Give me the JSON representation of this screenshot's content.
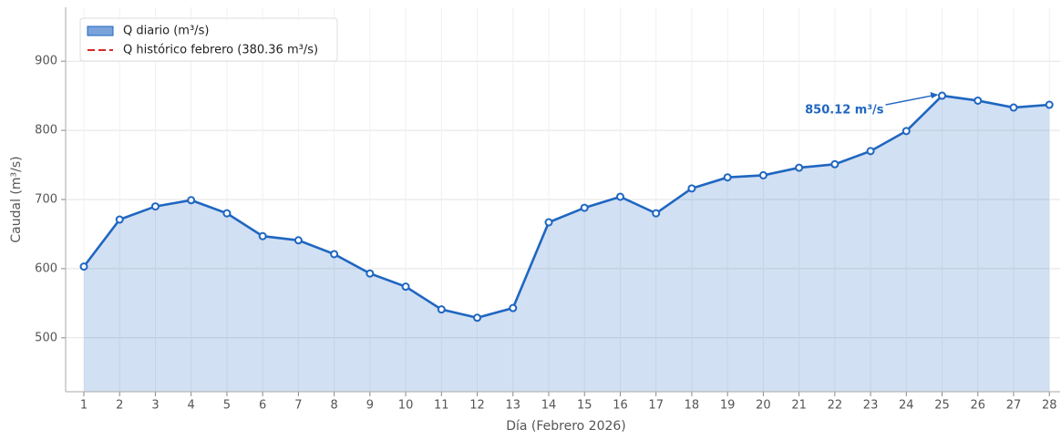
{
  "chart_data": {
    "type": "area-line",
    "xlabel": "Día (Febrero 2026)",
    "ylabel": "Caudal (m³/s)",
    "x": [
      1,
      2,
      3,
      4,
      5,
      6,
      7,
      8,
      9,
      10,
      11,
      12,
      13,
      14,
      15,
      16,
      17,
      18,
      19,
      20,
      21,
      22,
      23,
      24,
      25,
      26,
      27,
      28
    ],
    "series": [
      {
        "name": "Q diario (m³/s)",
        "color": "#1f66c1",
        "values": [
          603,
          671,
          690,
          699,
          680,
          647,
          641,
          621,
          593,
          574,
          541,
          529,
          543,
          667,
          688,
          704,
          680,
          716,
          732,
          735,
          746,
          751,
          770,
          799,
          850.12,
          843,
          833,
          837
        ]
      }
    ],
    "reference_line": {
      "name": "Q histórico febrero (380.36 m³/s)",
      "value": 380.36,
      "color": "#d62728"
    },
    "annotation": "850.12 m³/s",
    "xlim": [
      0.49,
      28.3
    ],
    "xticks": [
      1,
      2,
      3,
      4,
      5,
      6,
      7,
      8,
      9,
      10,
      11,
      12,
      13,
      14,
      15,
      16,
      17,
      18,
      19,
      20,
      21,
      22,
      23,
      24,
      25,
      26,
      27,
      28
    ],
    "ylim": [
      422,
      978
    ],
    "yticks": [
      500,
      600,
      700,
      800,
      900
    ],
    "grid": true,
    "legend": "upper left"
  }
}
